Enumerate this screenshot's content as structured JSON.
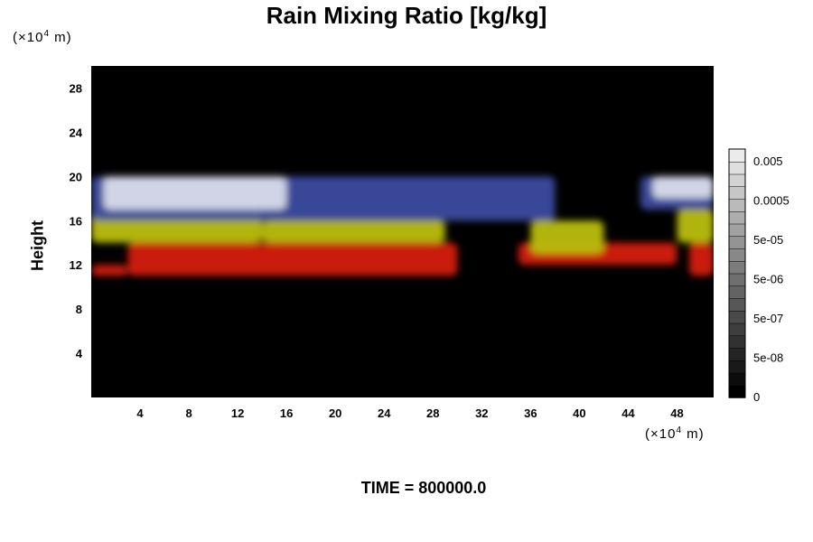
{
  "chart_data": {
    "type": "heatmap",
    "title": "Rain Mixing Ratio [kg/kg]",
    "ylabel": "Height",
    "y_unit_prefix": "(×10",
    "y_unit_exp": "4",
    "y_unit_suffix": " m)",
    "x_unit_prefix": "(×10",
    "x_unit_exp": "4",
    "x_unit_suffix": " m)",
    "xlim": [
      0,
      51
    ],
    "ylim": [
      0,
      30
    ],
    "x_ticks": [
      4,
      8,
      12,
      16,
      20,
      24,
      28,
      32,
      36,
      40,
      44,
      48
    ],
    "y_ticks": [
      4,
      8,
      12,
      16,
      20,
      24,
      28
    ],
    "colorbar_labels": [
      "0.005",
      "0.0005",
      "5e-05",
      "5e-06",
      "5e-07",
      "5e-08",
      "0"
    ],
    "bands": [
      {
        "color": "#d41a10",
        "segments": [
          [
            0,
            3,
            11,
            12
          ],
          [
            3,
            30,
            11,
            14
          ],
          [
            35,
            48,
            12,
            14
          ],
          [
            49,
            51,
            11,
            14
          ]
        ]
      },
      {
        "color": "#b9be0a",
        "segments": [
          [
            0,
            14,
            14,
            17
          ],
          [
            14,
            29,
            14,
            16
          ],
          [
            36,
            42,
            13,
            16
          ],
          [
            48,
            51,
            14,
            17
          ]
        ]
      },
      {
        "color": "#3c4ca0",
        "segments": [
          [
            0,
            38,
            16,
            20
          ],
          [
            45,
            51,
            17,
            20
          ]
        ]
      },
      {
        "color": "#d8dcea",
        "segments": [
          [
            1,
            16,
            17,
            20
          ],
          [
            46,
            51,
            18,
            20
          ]
        ]
      }
    ],
    "background": "#000000",
    "legend_position": "right"
  },
  "footer": {
    "time_text": "TIME = 800000.0"
  }
}
